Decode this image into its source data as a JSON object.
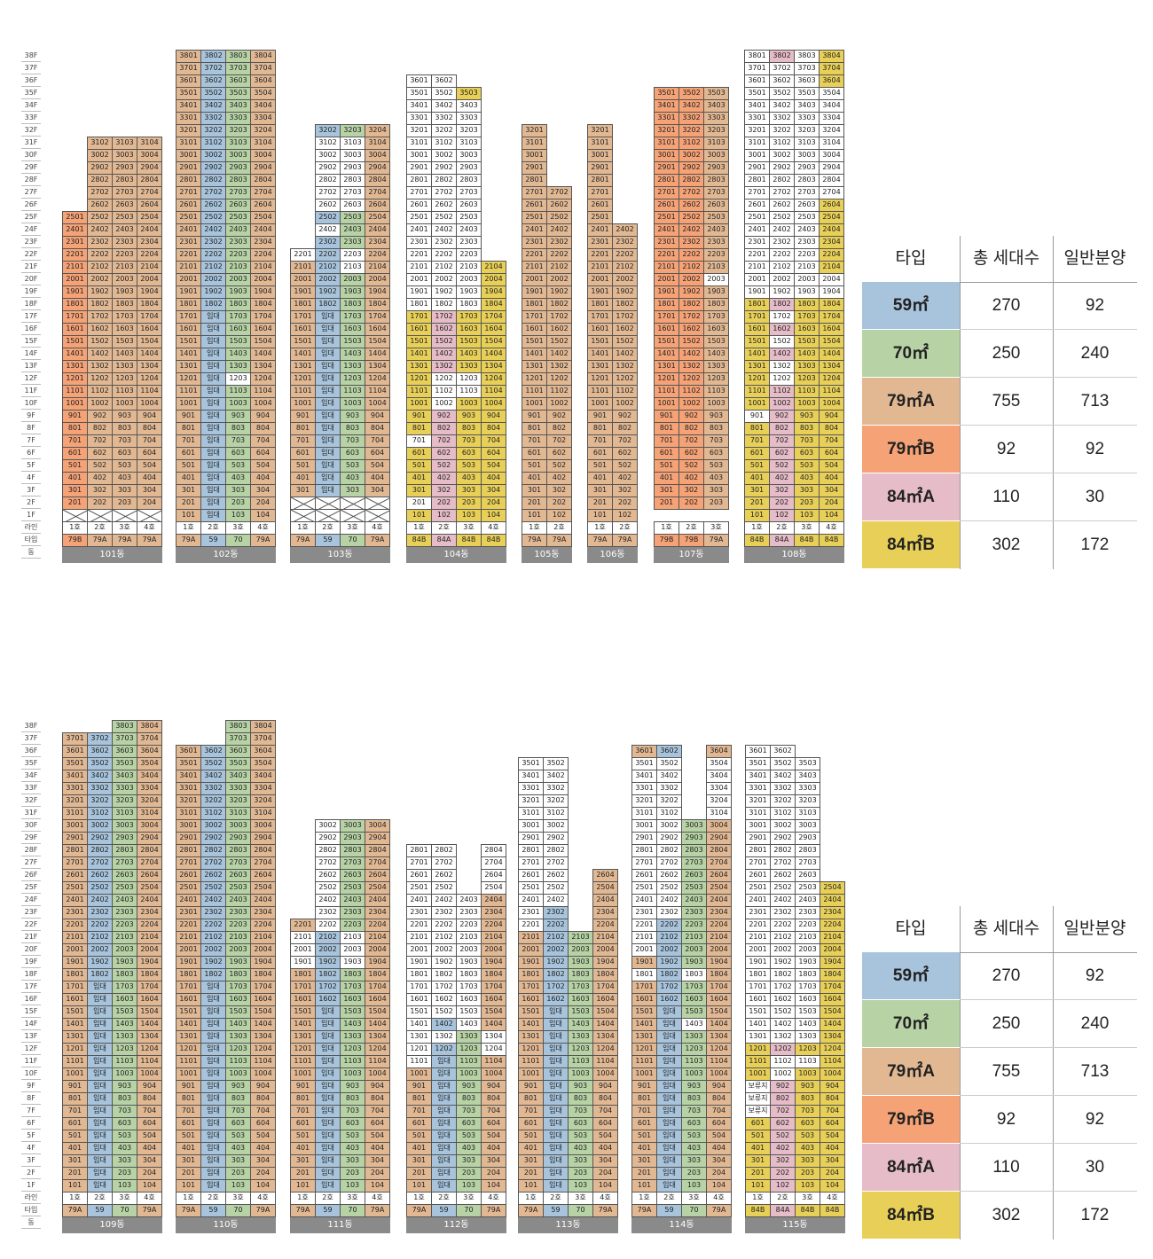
{
  "colors": {
    "59": "#a7c4dc",
    "70": "#b7d3a5",
    "79A": "#e2b893",
    "79B": "#f4a276",
    "84A": "#e5bcc8",
    "84B": "#e8d058",
    "none": "#ffffff"
  },
  "floor_labels": [
    "38F",
    "37F",
    "36F",
    "35F",
    "34F",
    "33F",
    "32F",
    "31F",
    "30F",
    "29F",
    "28F",
    "27F",
    "26F",
    "25F",
    "24F",
    "23F",
    "22F",
    "21F",
    "20F",
    "19F",
    "18F",
    "17F",
    "16F",
    "15F",
    "14F",
    "13F",
    "12F",
    "11F",
    "10F",
    "9F",
    "8F",
    "7F",
    "6F",
    "5F",
    "4F",
    "3F",
    "2F",
    "1F",
    "라인",
    "타입",
    "동"
  ],
  "rental_label": "임대",
  "reserve_label": "보류지",
  "line_labels": [
    "1호",
    "2호",
    "3호",
    "4호"
  ],
  "legend": {
    "headers": [
      "타입",
      "총 세대수",
      "일반분양"
    ],
    "rows": [
      {
        "type": "59㎡",
        "total": "270",
        "general": "92",
        "color_key": "59"
      },
      {
        "type": "70㎡",
        "total": "250",
        "general": "240",
        "color_key": "70"
      },
      {
        "type": "79㎡A",
        "total": "755",
        "general": "713",
        "color_key": "79A"
      },
      {
        "type": "79㎡B",
        "total": "92",
        "general": "92",
        "color_key": "79B"
      },
      {
        "type": "84㎡A",
        "total": "110",
        "general": "30",
        "color_key": "84A"
      },
      {
        "type": "84㎡B",
        "total": "302",
        "general": "172",
        "color_key": "84B"
      }
    ]
  },
  "sections": [
    {
      "buildings": [
        {
          "name": "101동",
          "types": [
            "79B",
            "79A",
            "79A",
            "79A"
          ],
          "start": 2,
          "tops": [
            25,
            31,
            31,
            31
          ],
          "fill": [
            [
              "79B",
              2,
              25
            ],
            [
              "79A",
              2,
              31
            ],
            [
              "79A",
              2,
              31
            ],
            [
              "79A",
              2,
              31
            ]
          ],
          "pilotis": 1,
          "rental": [],
          "white": [],
          "reserve": []
        },
        {
          "name": "102동",
          "types": [
            "79A",
            "59",
            "70",
            "79A"
          ],
          "start": 1,
          "tops": [
            38,
            38,
            38,
            38
          ],
          "fill": [
            [
              "79A",
              1,
              38
            ],
            [
              "59",
              1,
              38
            ],
            [
              "70",
              1,
              38
            ],
            [
              "79A",
              1,
              38
            ]
          ],
          "pilotis": 0,
          "rental": [
            [
              2,
              1,
              17
            ]
          ],
          "white": [
            [
              3,
              12,
              12
            ]
          ],
          "reserve": []
        },
        {
          "name": "103동",
          "types": [
            "79A",
            "59",
            "70",
            "79A"
          ],
          "start": 3,
          "tops": [
            22,
            32,
            32,
            32
          ],
          "fill": [
            [
              "79A",
              3,
              22
            ],
            [
              "59",
              3,
              32
            ],
            [
              "70",
              3,
              32
            ],
            [
              "79A",
              3,
              32
            ]
          ],
          "pilotis": 2,
          "rental": [
            [
              2,
              3,
              17
            ]
          ],
          "white": [
            [
              3,
              21,
              21
            ],
            [
              2,
              26,
              31
            ],
            [
              3,
              26,
              31
            ],
            [
              1,
              22,
              22
            ],
            [
              2,
              24,
              24
            ],
            [
              3,
              22,
              22
            ]
          ],
          "reserve": []
        },
        {
          "name": "104동",
          "types": [
            "84B",
            "84A",
            "84B",
            "84B"
          ],
          "start": 1,
          "tops": [
            36,
            36,
            35,
            21
          ],
          "fill": [
            [
              "84B",
              1,
              36
            ],
            [
              "84A",
              1,
              36
            ],
            [
              "84B",
              1,
              35
            ],
            [
              "84B",
              1,
              21
            ]
          ],
          "pilotis": 1,
          "rental": [],
          "white": [
            [
              1,
              18,
              36
            ],
            [
              2,
              18,
              36
            ],
            [
              3,
              18,
              34
            ],
            [
              1,
              7,
              7
            ],
            [
              2,
              10,
              10
            ],
            [
              2,
              11,
              12
            ],
            [
              3,
              11,
              12
            ],
            [
              3,
              22,
              31
            ],
            [
              3,
              20,
              21
            ],
            [
              1,
              2,
              2
            ],
            [
              1,
              36,
              36
            ]
          ],
          "reserve": []
        },
        {
          "name": "105동",
          "types": [
            "79A",
            "79A"
          ],
          "start": 1,
          "tops": [
            32,
            27
          ],
          "fill": [
            [
              "79A",
              1,
              32
            ],
            [
              "79A",
              1,
              27
            ]
          ],
          "pilotis": 0,
          "rental": [],
          "white": [],
          "reserve": []
        },
        {
          "name": "106동",
          "types": [
            "79A",
            "79A"
          ],
          "start": 1,
          "tops": [
            32,
            24
          ],
          "fill": [
            [
              "79A",
              1,
              32
            ],
            [
              "79A",
              1,
              24
            ]
          ],
          "pilotis": 0,
          "rental": [],
          "white": [],
          "reserve": []
        },
        {
          "name": "107동",
          "types": [
            "79B",
            "79B",
            "79A"
          ],
          "start": 2,
          "tops": [
            35,
            35,
            35
          ],
          "fill": [
            [
              "79B",
              2,
              35
            ],
            [
              "79B",
              2,
              35
            ],
            [
              "79A",
              2,
              35
            ]
          ],
          "pilotis": 0,
          "rental": [],
          "white": [
            [
              3,
              20,
              20
            ]
          ],
          "reserve": []
        },
        {
          "name": "108동",
          "types": [
            "84B",
            "84A",
            "84B",
            "84B"
          ],
          "start": 1,
          "tops": [
            38,
            38,
            38,
            38
          ],
          "fill": [
            [
              "84B",
              1,
              38
            ],
            [
              "84A",
              1,
              38
            ],
            [
              "84B",
              1,
              38
            ],
            [
              "84B",
              1,
              38
            ]
          ],
          "pilotis": 0,
          "rental": [],
          "white": [
            [
              1,
              19,
              38
            ],
            [
              2,
              19,
              37
            ],
            [
              3,
              19,
              38
            ],
            [
              4,
              27,
              35
            ],
            [
              1,
              9,
              9
            ],
            [
              2,
              12,
              12
            ],
            [
              2,
              15,
              15
            ],
            [
              2,
              17,
              17
            ],
            [
              2,
              13,
              13
            ],
            [
              4,
              19,
              19
            ],
            [
              4,
              20,
              20
            ]
          ],
          "reserve": []
        }
      ]
    },
    {
      "buildings": [
        {
          "name": "109동",
          "types": [
            "79A",
            "59",
            "70",
            "79A"
          ],
          "start": 1,
          "tops": [
            37,
            37,
            38,
            38
          ],
          "fill": [
            [
              "79A",
              1,
              37
            ],
            [
              "59",
              1,
              37
            ],
            [
              "70",
              1,
              38
            ],
            [
              "79A",
              1,
              38
            ]
          ],
          "pilotis": 0,
          "rental": [
            [
              2,
              1,
              17
            ]
          ],
          "white": [],
          "reserve": []
        },
        {
          "name": "110동",
          "types": [
            "79A",
            "59",
            "70",
            "79A"
          ],
          "start": 1,
          "tops": [
            36,
            36,
            38,
            38
          ],
          "fill": [
            [
              "79A",
              1,
              36
            ],
            [
              "59",
              1,
              36
            ],
            [
              "70",
              1,
              38
            ],
            [
              "79A",
              1,
              38
            ]
          ],
          "pilotis": 0,
          "rental": [
            [
              2,
              1,
              17
            ]
          ],
          "white": [],
          "reserve": []
        },
        {
          "name": "111동",
          "types": [
            "79A",
            "59",
            "70",
            "79A"
          ],
          "start": 1,
          "tops": [
            22,
            30,
            30,
            30
          ],
          "fill": [
            [
              "79A",
              1,
              22
            ],
            [
              "59",
              1,
              30
            ],
            [
              "70",
              1,
              30
            ],
            [
              "79A",
              1,
              30
            ]
          ],
          "pilotis": 0,
          "rental": [
            [
              2,
              1,
              15
            ]
          ],
          "white": [
            [
              1,
              19,
              21
            ],
            [
              2,
              22,
              30
            ],
            [
              3,
              19,
              21
            ]
          ],
          "reserve": []
        },
        {
          "name": "112동",
          "types": [
            "79A",
            "59",
            "70",
            "79A"
          ],
          "start": 1,
          "tops": [
            28,
            28,
            24,
            28
          ],
          "fill": [
            [
              "79A",
              1,
              28
            ],
            [
              "59",
              1,
              28
            ],
            [
              "70",
              1,
              24
            ],
            [
              "79A",
              1,
              28
            ]
          ],
          "pilotis": 0,
          "rental": [
            [
              2,
              1,
              11
            ]
          ],
          "white": [
            [
              1,
              11,
              28
            ],
            [
              2,
              15,
              28
            ],
            [
              3,
              14,
              24
            ],
            [
              4,
              25,
              28
            ],
            [
              2,
              13,
              13
            ],
            [
              4,
              12,
              13
            ]
          ],
          "reserve": []
        },
        {
          "name": "113동",
          "types": [
            "79A",
            "59",
            "70",
            "79A"
          ],
          "start": 1,
          "tops": [
            35,
            35,
            21,
            26
          ],
          "fill": [
            [
              "79A",
              1,
              35
            ],
            [
              "59",
              1,
              35
            ],
            [
              "70",
              1,
              21
            ],
            [
              "79A",
              1,
              26
            ]
          ],
          "pilotis": 0,
          "rental": [
            [
              2,
              1,
              15
            ]
          ],
          "white": [
            [
              1,
              22,
              35
            ],
            [
              2,
              24,
              35
            ]
          ],
          "reserve": []
        },
        {
          "name": "114동",
          "types": [
            "79A",
            "59",
            "70",
            "79A"
          ],
          "start": 1,
          "tops": [
            36,
            36,
            30,
            36
          ],
          "fill": [
            [
              "79A",
              1,
              36
            ],
            [
              "59",
              1,
              36
            ],
            [
              "70",
              1,
              30
            ],
            [
              "79A",
              1,
              36
            ]
          ],
          "pilotis": 0,
          "rental": [
            [
              2,
              1,
              15
            ]
          ],
          "white": [
            [
              1,
              20,
              35
            ],
            [
              2,
              23,
              35
            ],
            [
              3,
              31,
              35
            ],
            [
              4,
              31,
              35
            ],
            [
              1,
              18,
              18
            ],
            [
              3,
              18,
              18
            ],
            [
              3,
              14,
              14
            ]
          ],
          "reserve": []
        },
        {
          "name": "115동",
          "types": [
            "84B",
            "84A",
            "84B",
            "84B"
          ],
          "start": 1,
          "tops": [
            36,
            36,
            35,
            25
          ],
          "fill": [
            [
              "84B",
              1,
              36
            ],
            [
              "84A",
              1,
              36
            ],
            [
              "84B",
              1,
              35
            ],
            [
              "84B",
              1,
              25
            ]
          ],
          "pilotis": 0,
          "rental": [],
          "white": [
            [
              1,
              13,
              36
            ],
            [
              2,
              13,
              36
            ],
            [
              3,
              13,
              35
            ],
            [
              1,
              9,
              9
            ],
            [
              2,
              11,
              11
            ],
            [
              2,
              10,
              10
            ],
            [
              3,
              11,
              11
            ]
          ],
          "reserve": [
            [
              1,
              7,
              9
            ]
          ]
        }
      ]
    }
  ]
}
